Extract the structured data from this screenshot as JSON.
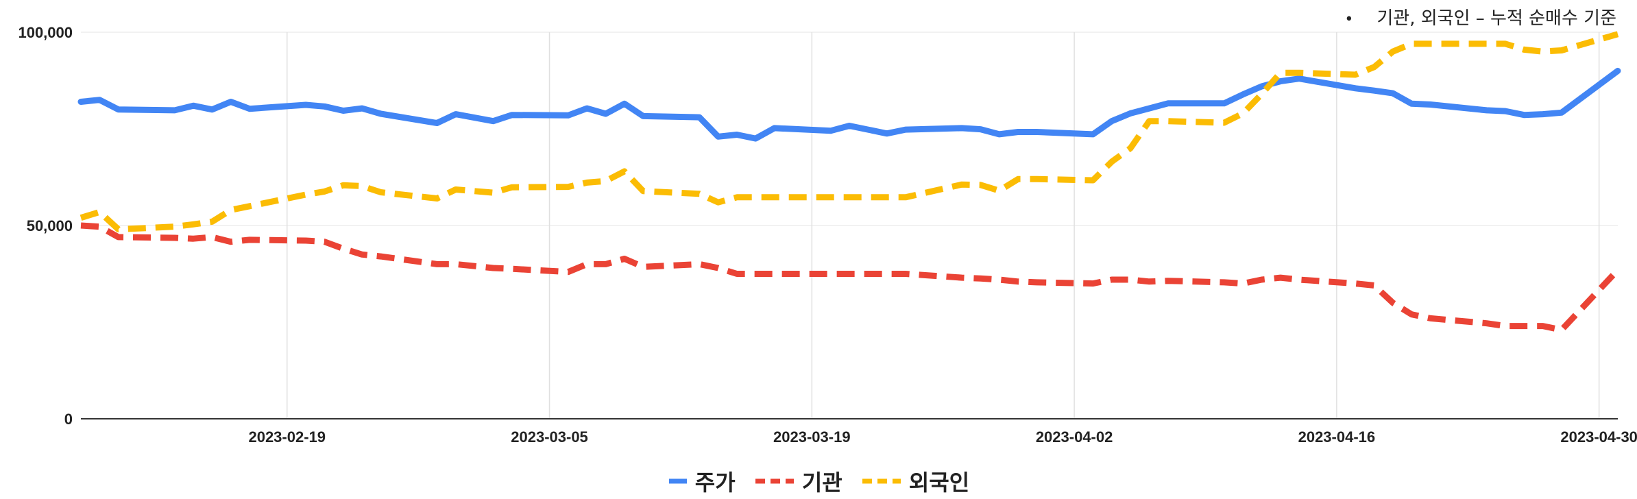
{
  "note": {
    "bullet": "•",
    "text": "기관, 외국인 – 누적 순매수 기준"
  },
  "colors": {
    "price": "#4285f4",
    "inst": "#ea4335",
    "foreign": "#fbbc04",
    "grid": "#e0e0e0",
    "axis": "#333333"
  },
  "chart_data": {
    "type": "line",
    "title": "",
    "xlabel": "",
    "ylabel": "",
    "x_range": [
      "2023-02-08",
      "2023-05-01"
    ],
    "ylim": [
      0,
      100000
    ],
    "y_ticks": [
      0,
      50000,
      100000
    ],
    "y_tick_labels": [
      "0",
      "50,000",
      "100,000"
    ],
    "x_ticks": [
      "2023-02-19",
      "2023-03-05",
      "2023-03-19",
      "2023-04-02",
      "2023-04-16",
      "2023-04-30"
    ],
    "grid": "vertical",
    "legend": "bottom",
    "series": [
      {
        "name": "주가",
        "style": "solid",
        "colorKey": "price",
        "points": [
          [
            "2023-02-08",
            82000
          ],
          [
            "2023-02-09",
            82500
          ],
          [
            "2023-02-10",
            80000
          ],
          [
            "2023-02-13",
            79800
          ],
          [
            "2023-02-14",
            81000
          ],
          [
            "2023-02-15",
            80000
          ],
          [
            "2023-02-16",
            82000
          ],
          [
            "2023-02-17",
            80200
          ],
          [
            "2023-02-20",
            81200
          ],
          [
            "2023-02-21",
            80800
          ],
          [
            "2023-02-22",
            79700
          ],
          [
            "2023-02-23",
            80300
          ],
          [
            "2023-02-24",
            78900
          ],
          [
            "2023-02-27",
            76500
          ],
          [
            "2023-02-28",
            78800
          ],
          [
            "2023-03-02",
            77000
          ],
          [
            "2023-03-03",
            78600
          ],
          [
            "2023-03-06",
            78500
          ],
          [
            "2023-03-07",
            80300
          ],
          [
            "2023-03-08",
            78900
          ],
          [
            "2023-03-09",
            81500
          ],
          [
            "2023-03-10",
            78300
          ],
          [
            "2023-03-13",
            78000
          ],
          [
            "2023-03-14",
            73000
          ],
          [
            "2023-03-15",
            73500
          ],
          [
            "2023-03-16",
            72500
          ],
          [
            "2023-03-17",
            75200
          ],
          [
            "2023-03-20",
            74500
          ],
          [
            "2023-03-21",
            75800
          ],
          [
            "2023-03-22",
            74800
          ],
          [
            "2023-03-23",
            73800
          ],
          [
            "2023-03-24",
            74800
          ],
          [
            "2023-03-27",
            75200
          ],
          [
            "2023-03-28",
            74900
          ],
          [
            "2023-03-29",
            73600
          ],
          [
            "2023-03-30",
            74200
          ],
          [
            "2023-03-31",
            74200
          ],
          [
            "2023-04-03",
            73600
          ],
          [
            "2023-04-04",
            77000
          ],
          [
            "2023-04-05",
            79000
          ],
          [
            "2023-04-06",
            80300
          ],
          [
            "2023-04-07",
            81600
          ],
          [
            "2023-04-10",
            81600
          ],
          [
            "2023-04-11",
            83900
          ],
          [
            "2023-04-12",
            86000
          ],
          [
            "2023-04-13",
            87300
          ],
          [
            "2023-04-14",
            88000
          ],
          [
            "2023-04-17",
            85500
          ],
          [
            "2023-04-18",
            84900
          ],
          [
            "2023-04-19",
            84200
          ],
          [
            "2023-04-20",
            81500
          ],
          [
            "2023-04-21",
            81300
          ],
          [
            "2023-04-24",
            79800
          ],
          [
            "2023-04-25",
            79600
          ],
          [
            "2023-04-26",
            78600
          ],
          [
            "2023-04-27",
            78800
          ],
          [
            "2023-04-28",
            79200
          ],
          [
            "2023-05-01",
            90000
          ]
        ]
      },
      {
        "name": "기관",
        "style": "dashed",
        "colorKey": "inst",
        "points": [
          [
            "2023-02-08",
            50000
          ],
          [
            "2023-02-09",
            49700
          ],
          [
            "2023-02-10",
            47000
          ],
          [
            "2023-02-13",
            46800
          ],
          [
            "2023-02-14",
            46600
          ],
          [
            "2023-02-15",
            47000
          ],
          [
            "2023-02-16",
            45800
          ],
          [
            "2023-02-17",
            46300
          ],
          [
            "2023-02-20",
            46100
          ],
          [
            "2023-02-21",
            45800
          ],
          [
            "2023-02-22",
            44000
          ],
          [
            "2023-02-23",
            42500
          ],
          [
            "2023-02-24",
            42000
          ],
          [
            "2023-02-27",
            40000
          ],
          [
            "2023-02-28",
            40000
          ],
          [
            "2023-03-02",
            39000
          ],
          [
            "2023-03-03",
            38800
          ],
          [
            "2023-03-06",
            38000
          ],
          [
            "2023-03-07",
            40000
          ],
          [
            "2023-03-08",
            40000
          ],
          [
            "2023-03-09",
            41400
          ],
          [
            "2023-03-10",
            39300
          ],
          [
            "2023-03-13",
            40000
          ],
          [
            "2023-03-14",
            39000
          ],
          [
            "2023-03-15",
            37500
          ],
          [
            "2023-03-16",
            37500
          ],
          [
            "2023-03-17",
            37500
          ],
          [
            "2023-03-20",
            37500
          ],
          [
            "2023-03-21",
            37500
          ],
          [
            "2023-03-22",
            37500
          ],
          [
            "2023-03-23",
            37500
          ],
          [
            "2023-03-24",
            37500
          ],
          [
            "2023-03-27",
            36500
          ],
          [
            "2023-03-28",
            36300
          ],
          [
            "2023-03-29",
            36000
          ],
          [
            "2023-03-30",
            35500
          ],
          [
            "2023-03-31",
            35300
          ],
          [
            "2023-04-03",
            35000
          ],
          [
            "2023-04-04",
            36000
          ],
          [
            "2023-04-05",
            36000
          ],
          [
            "2023-04-06",
            35500
          ],
          [
            "2023-04-07",
            35700
          ],
          [
            "2023-04-10",
            35300
          ],
          [
            "2023-04-11",
            35000
          ],
          [
            "2023-04-12",
            36000
          ],
          [
            "2023-04-13",
            36500
          ],
          [
            "2023-04-14",
            36000
          ],
          [
            "2023-04-17",
            35000
          ],
          [
            "2023-04-18",
            34500
          ],
          [
            "2023-04-19",
            30000
          ],
          [
            "2023-04-20",
            27000
          ],
          [
            "2023-04-21",
            26000
          ],
          [
            "2023-04-24",
            24700
          ],
          [
            "2023-04-25",
            24000
          ],
          [
            "2023-04-26",
            24000
          ],
          [
            "2023-04-27",
            24000
          ],
          [
            "2023-04-28",
            23000
          ],
          [
            "2023-05-01",
            38500
          ]
        ]
      },
      {
        "name": "외국인",
        "style": "dashed",
        "colorKey": "foreign",
        "points": [
          [
            "2023-02-08",
            52000
          ],
          [
            "2023-02-09",
            53500
          ],
          [
            "2023-02-10",
            49000
          ],
          [
            "2023-02-13",
            49700
          ],
          [
            "2023-02-14",
            50300
          ],
          [
            "2023-02-15",
            51000
          ],
          [
            "2023-02-16",
            54000
          ],
          [
            "2023-02-17",
            55000
          ],
          [
            "2023-02-20",
            58000
          ],
          [
            "2023-02-21",
            58800
          ],
          [
            "2023-02-22",
            60400
          ],
          [
            "2023-02-23",
            60200
          ],
          [
            "2023-02-24",
            58600
          ],
          [
            "2023-02-27",
            57000
          ],
          [
            "2023-02-28",
            59300
          ],
          [
            "2023-03-02",
            58500
          ],
          [
            "2023-03-03",
            59900
          ],
          [
            "2023-03-06",
            60000
          ],
          [
            "2023-03-07",
            61100
          ],
          [
            "2023-03-08",
            61500
          ],
          [
            "2023-03-09",
            64000
          ],
          [
            "2023-03-10",
            58900
          ],
          [
            "2023-03-13",
            58200
          ],
          [
            "2023-03-14",
            56000
          ],
          [
            "2023-03-15",
            57300
          ],
          [
            "2023-03-16",
            57300
          ],
          [
            "2023-03-17",
            57300
          ],
          [
            "2023-03-20",
            57300
          ],
          [
            "2023-03-21",
            57300
          ],
          [
            "2023-03-22",
            57300
          ],
          [
            "2023-03-23",
            57300
          ],
          [
            "2023-03-24",
            57300
          ],
          [
            "2023-03-27",
            60600
          ],
          [
            "2023-03-28",
            60500
          ],
          [
            "2023-03-29",
            59000
          ],
          [
            "2023-03-30",
            62000
          ],
          [
            "2023-03-31",
            62000
          ],
          [
            "2023-04-03",
            61700
          ],
          [
            "2023-04-04",
            66500
          ],
          [
            "2023-04-05",
            70000
          ],
          [
            "2023-04-06",
            77000
          ],
          [
            "2023-04-07",
            77000
          ],
          [
            "2023-04-10",
            76600
          ],
          [
            "2023-04-11",
            79000
          ],
          [
            "2023-04-12",
            84000
          ],
          [
            "2023-04-13",
            89500
          ],
          [
            "2023-04-14",
            89500
          ],
          [
            "2023-04-17",
            89000
          ],
          [
            "2023-04-18",
            91000
          ],
          [
            "2023-04-19",
            95000
          ],
          [
            "2023-04-20",
            97000
          ],
          [
            "2023-04-21",
            97000
          ],
          [
            "2023-04-24",
            97000
          ],
          [
            "2023-04-25",
            97000
          ],
          [
            "2023-04-26",
            95500
          ],
          [
            "2023-04-27",
            95000
          ],
          [
            "2023-04-28",
            95300
          ],
          [
            "2023-05-01",
            99500
          ]
        ]
      }
    ]
  }
}
